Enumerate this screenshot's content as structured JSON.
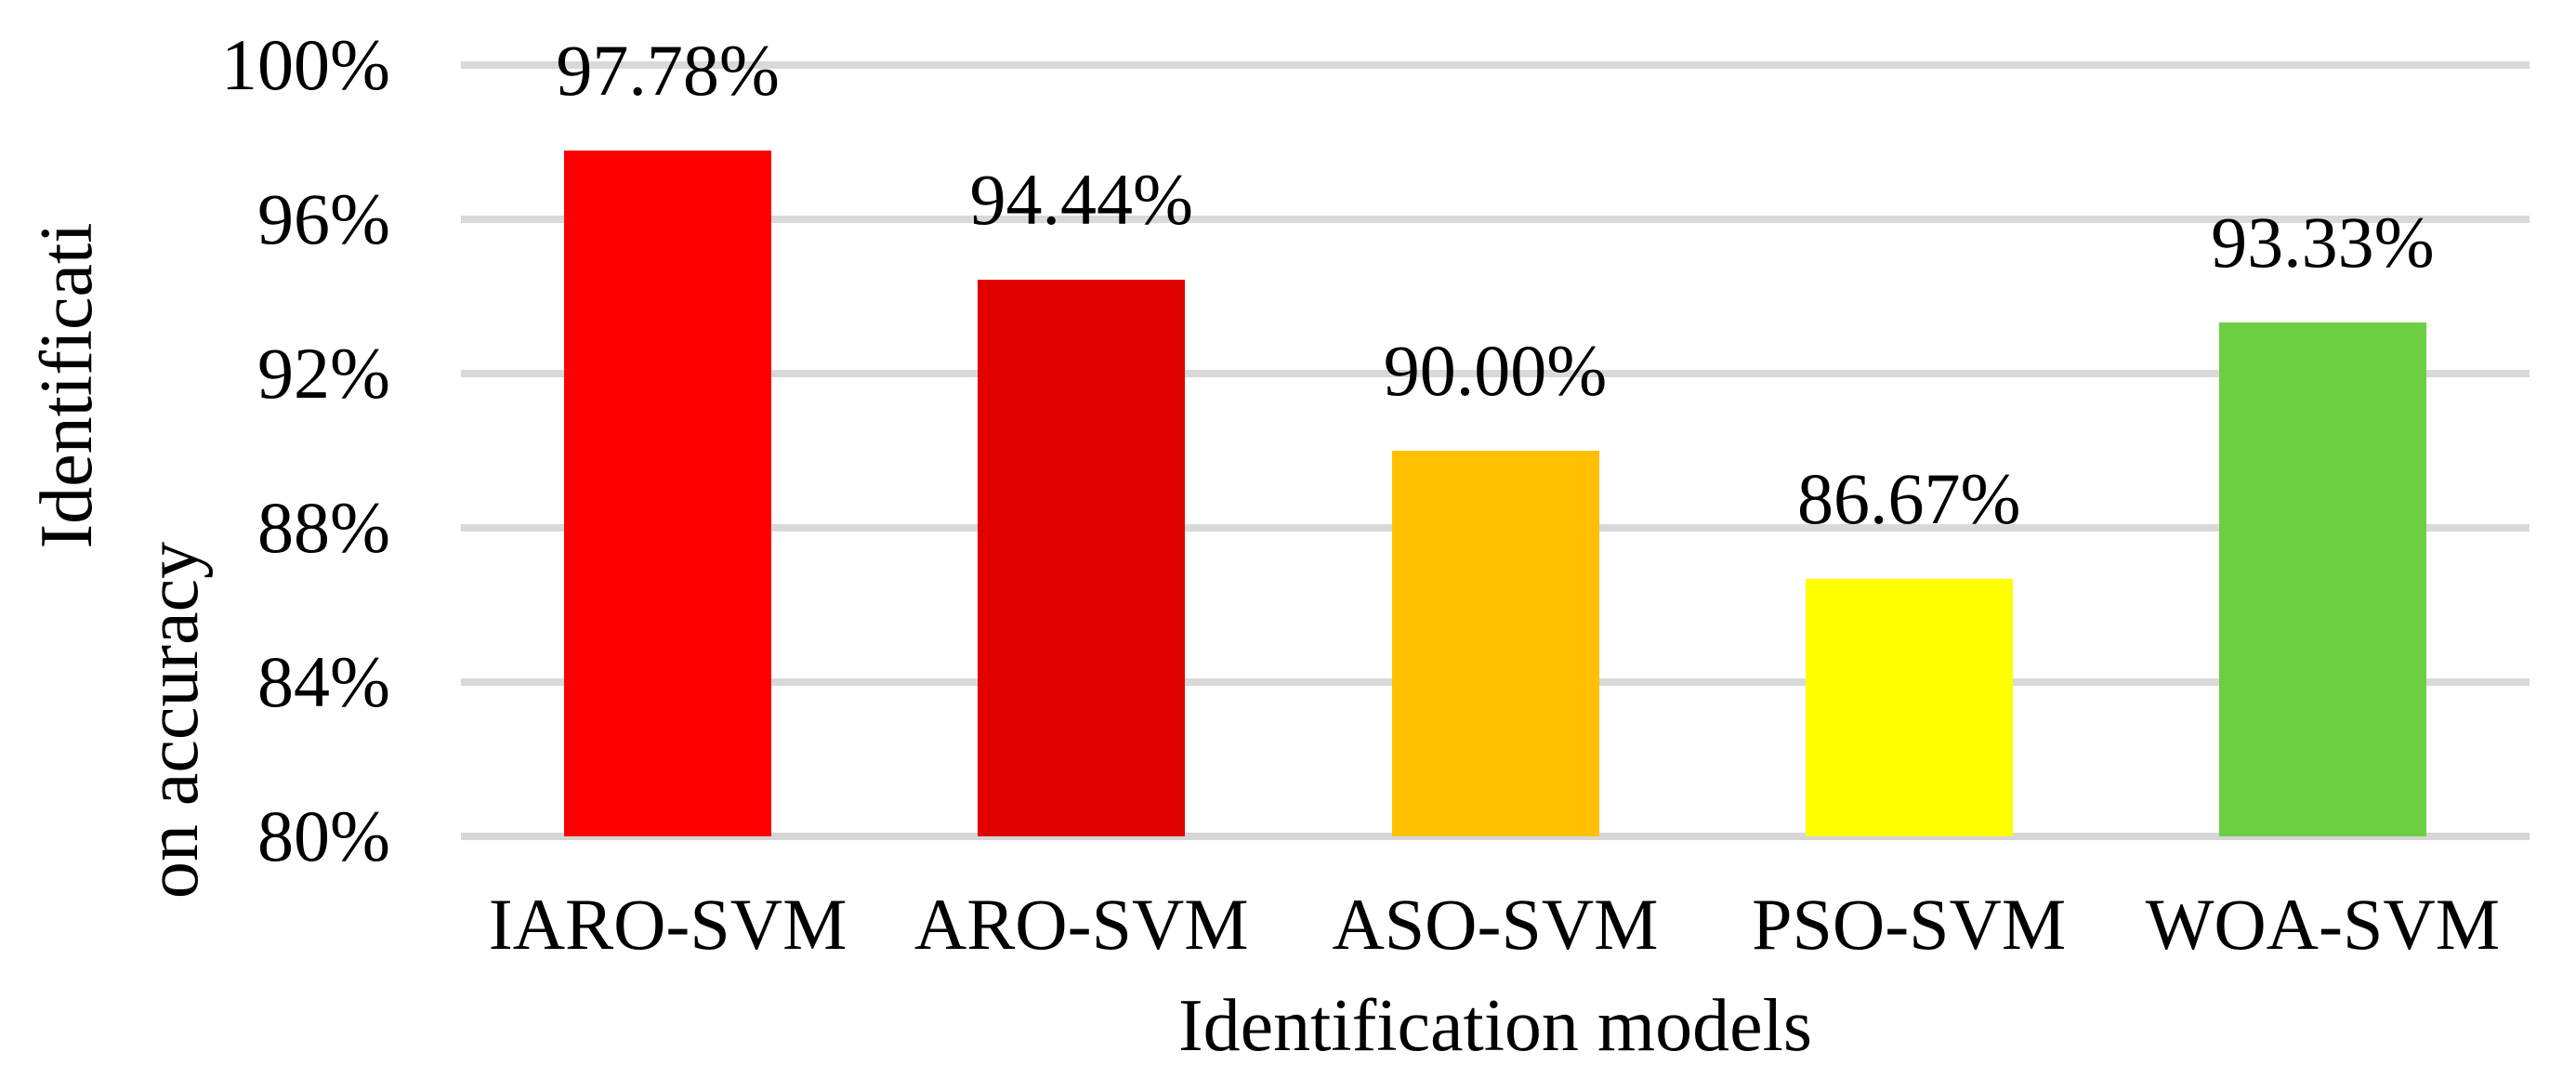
{
  "chart_data": {
    "type": "bar",
    "categories": [
      "IARO-SVM",
      "ARO-SVM",
      "ASO-SVM",
      "PSO-SVM",
      "WOA-SVM"
    ],
    "values": [
      97.78,
      94.44,
      90.0,
      86.67,
      93.33
    ],
    "data_labels": [
      "97.78%",
      "94.44%",
      "90.00%",
      "86.67%",
      "93.33%"
    ],
    "bar_colors": [
      "#FF0000",
      "#E00000",
      "#FFC000",
      "#FFFF00",
      "#6CCF43"
    ],
    "xlabel": "Identification models",
    "ylabel": "Identification accuracy",
    "ylabel_lines": [
      "Identificati",
      "on accuracy"
    ],
    "y_ticks": [
      "100%",
      "96%",
      "92%",
      "88%",
      "84%",
      "80%"
    ],
    "ylim": [
      80,
      100
    ],
    "grid": true,
    "gridline_color": "#D9D9D9",
    "axisline_color": "#D6D6D6",
    "label_color": "#000000",
    "legend_position": "none",
    "background_color": "#FFFFFF"
  }
}
